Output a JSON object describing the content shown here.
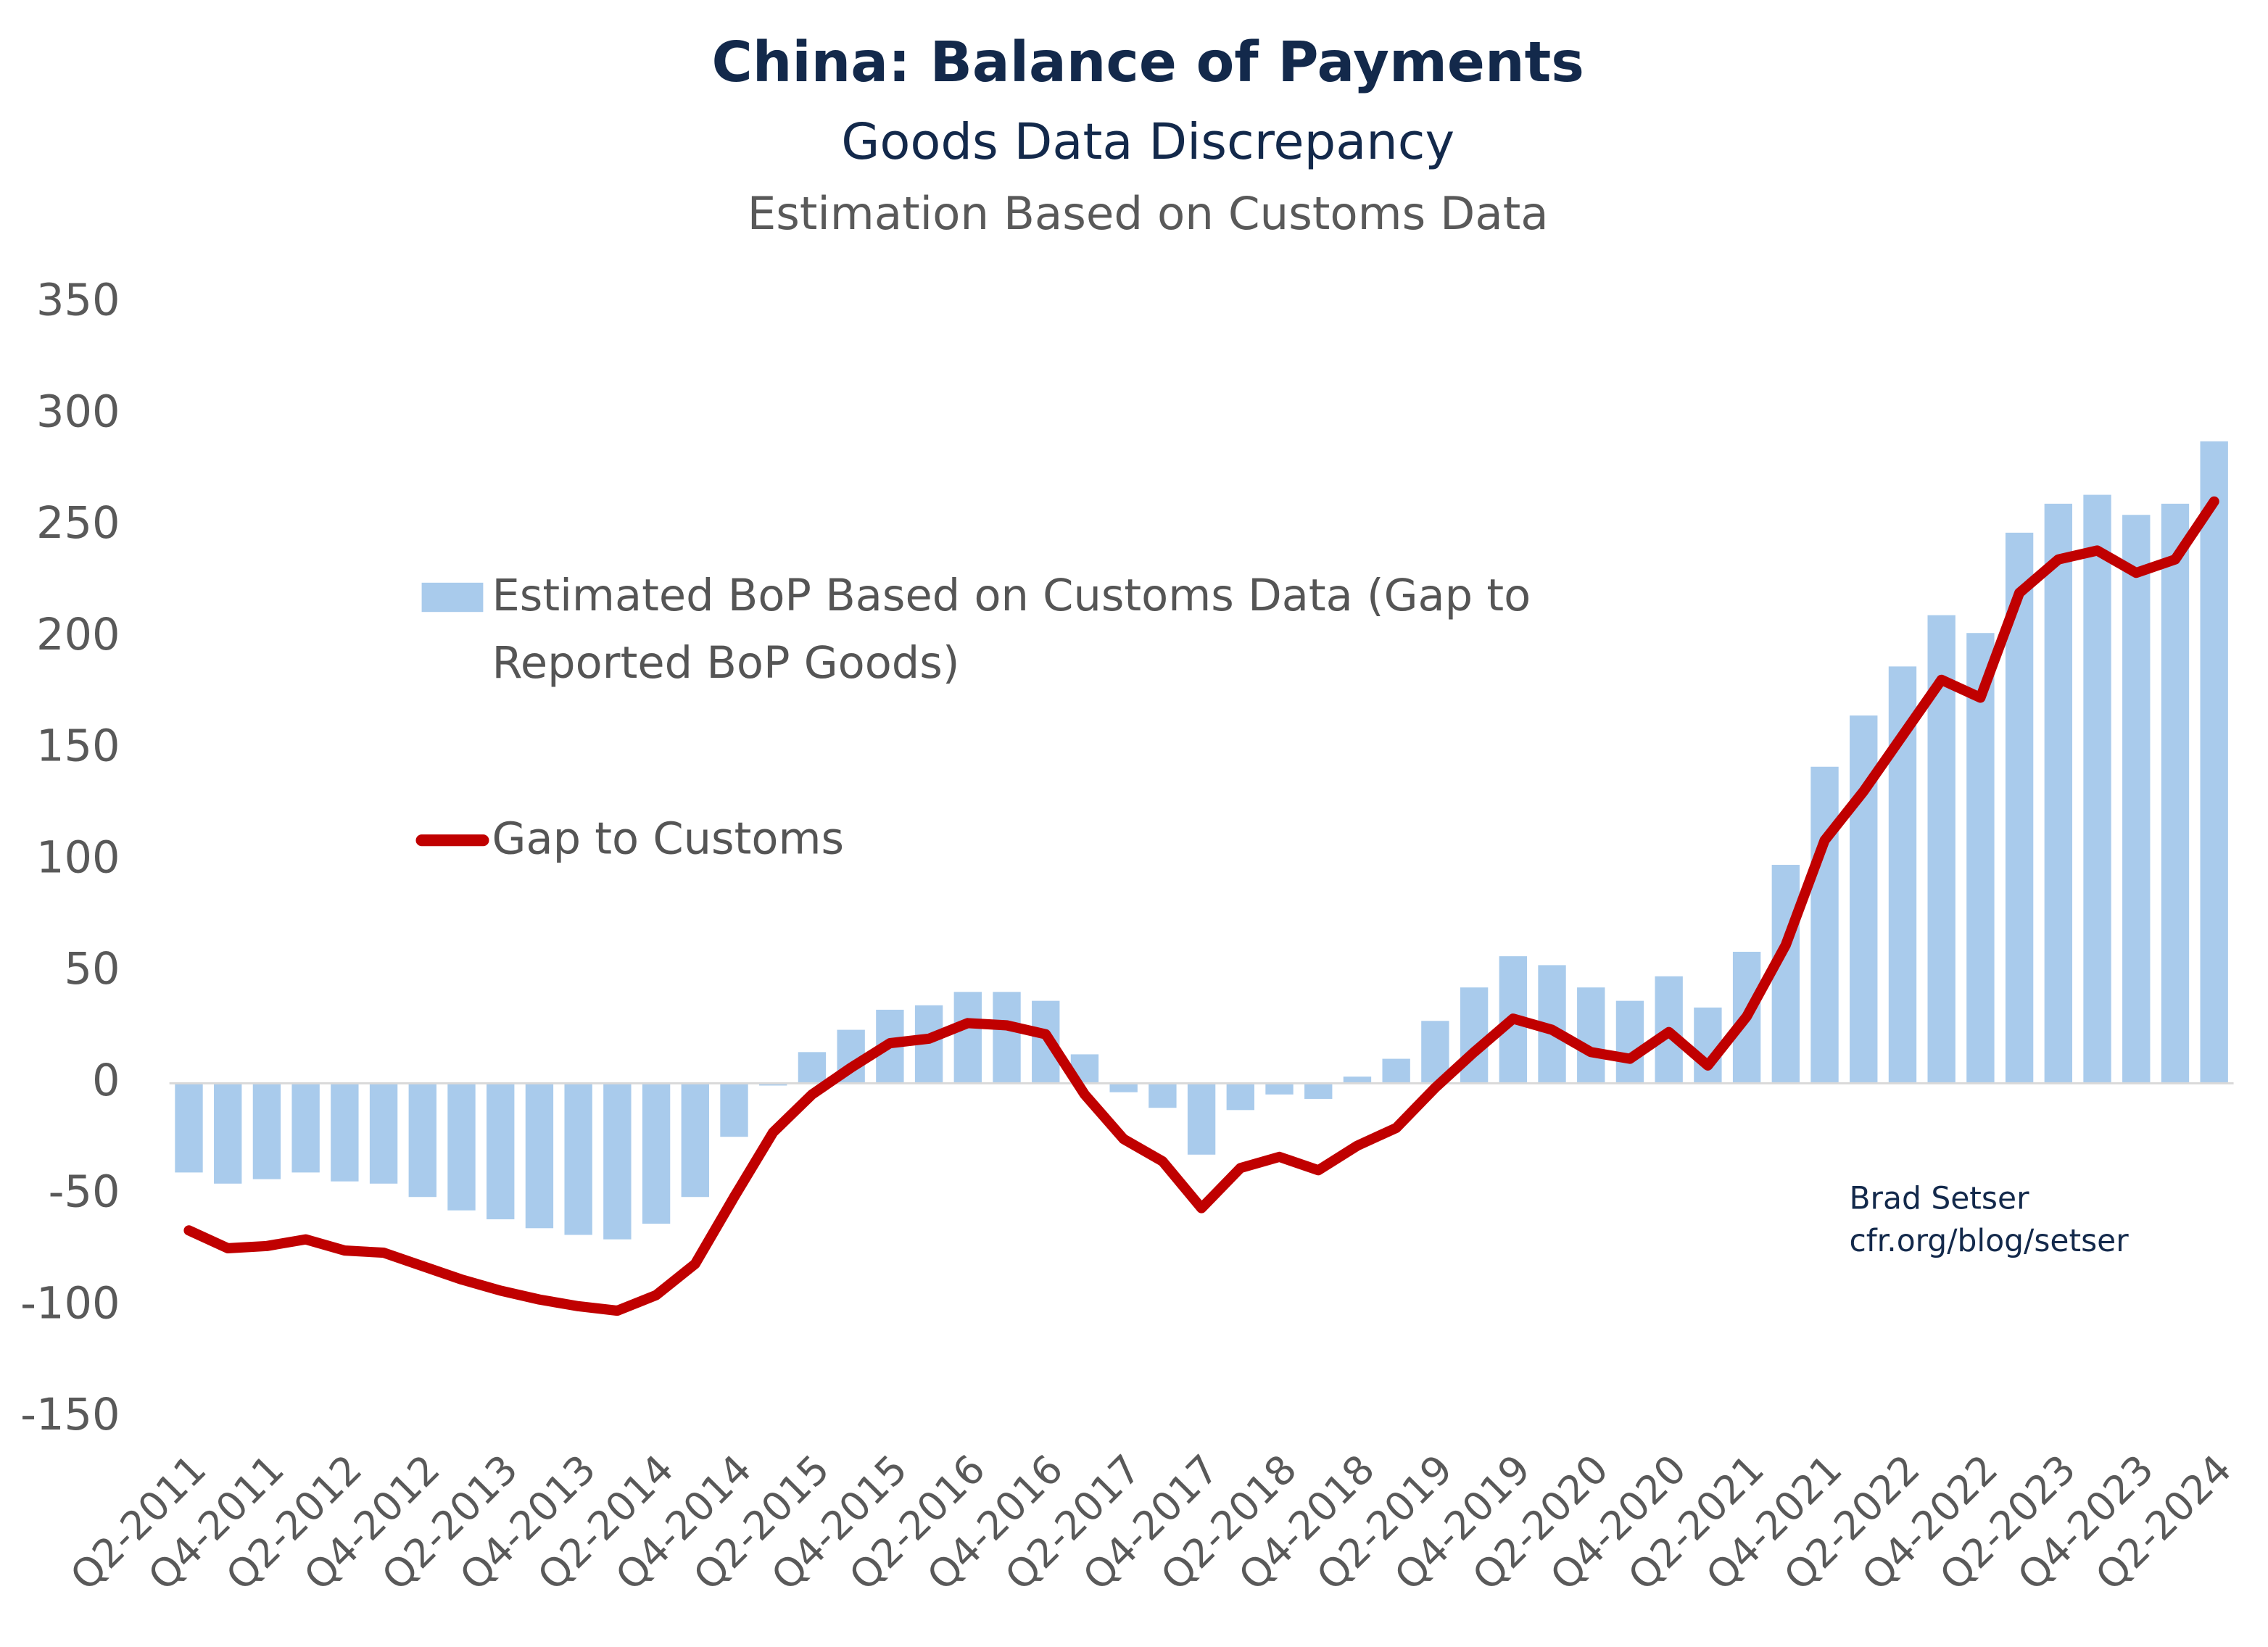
{
  "chart_data": {
    "type": "bar-line",
    "title": "China: Balance of Payments",
    "subtitle": "Goods Data Discrepancy",
    "subtitle2": "Estimation Based on Customs Data",
    "annotations": [
      "Brad Setser",
      "cfr.org/blog/setser"
    ],
    "categories": [
      "Q2-2011",
      null,
      "Q4-2011",
      null,
      "Q2-2012",
      null,
      "Q4-2012",
      null,
      "Q2-2013",
      null,
      "Q4-2013",
      null,
      "Q2-2014",
      null,
      "Q4-2014",
      null,
      "Q2-2015",
      null,
      "Q4-2015",
      null,
      "Q2-2016",
      null,
      "Q4-2016",
      null,
      "Q2-2017",
      null,
      "Q4-2017",
      null,
      "Q2-2018",
      null,
      "Q4-2018",
      null,
      "Q2-2019",
      null,
      "Q4-2019",
      null,
      "Q2-2020",
      null,
      "Q4-2020",
      null,
      "Q2-2021",
      null,
      "Q4-2021",
      null,
      "Q2-2022",
      null,
      "Q4-2022",
      null,
      "Q2-2023",
      null,
      "Q4-2023",
      null,
      "Q2-2024"
    ],
    "series": [
      {
        "name": "Estimated BoP Based on Customs Data (Gap to Reported BoP Goods)",
        "type": "bar",
        "color": "#a9cbec",
        "values": [
          -40,
          -45,
          -43,
          -40,
          -44,
          -45,
          -51,
          -57,
          -61,
          -65,
          -68,
          -70,
          -63,
          -51,
          -24,
          -1,
          14,
          24,
          33,
          35,
          41,
          41,
          37,
          13,
          -4,
          -11,
          -32,
          -12,
          -5,
          -7,
          3,
          11,
          28,
          43,
          57,
          53,
          43,
          37,
          48,
          34,
          59,
          98,
          142,
          165,
          187,
          210,
          202,
          247,
          260,
          264,
          255,
          260,
          288
        ]
      },
      {
        "name": "Gap to Customs",
        "type": "line",
        "color": "#c00000",
        "values": [
          -66,
          -74,
          -73,
          -70,
          -75,
          -76,
          -82,
          -88,
          -93,
          -97,
          -100,
          -102,
          -95,
          -81,
          -51,
          -22,
          -5,
          7,
          18,
          20,
          27,
          26,
          22,
          -5,
          -25,
          -35,
          -56,
          -38,
          -33,
          -39,
          -28,
          -20,
          -2,
          14,
          29,
          24,
          14,
          11,
          23,
          8,
          30,
          62,
          109,
          131,
          156,
          181,
          173,
          220,
          235,
          239,
          229,
          235,
          261
        ]
      }
    ],
    "ylim": [
      -150,
      350
    ],
    "yticks": [
      -150,
      -100,
      -50,
      0,
      50,
      100,
      150,
      200,
      250,
      300,
      350
    ],
    "grid": false
  }
}
